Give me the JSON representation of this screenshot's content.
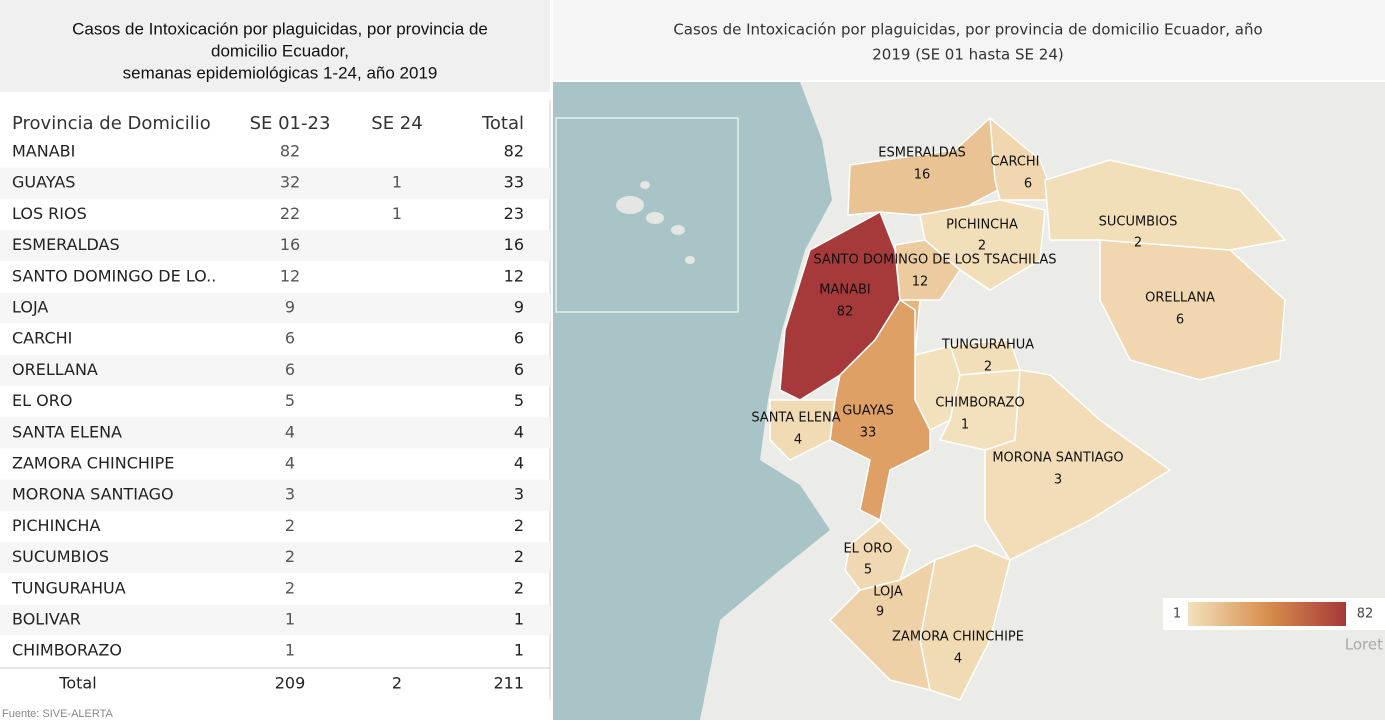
{
  "table": {
    "title": [
      "Casos de Intoxicación por plaguicidas, por provincia de",
      "domicilio Ecuador,",
      "semanas epidemiológicas 1-24, año 2019"
    ],
    "headers": [
      "Provincia de Domicilio",
      "SE 01-23",
      "SE 24",
      "Total"
    ],
    "rows": [
      [
        "MANABI",
        82,
        null,
        82
      ],
      [
        "GUAYAS",
        32,
        1,
        33
      ],
      [
        "LOS RIOS",
        22,
        1,
        23
      ],
      [
        "ESMERALDAS",
        16,
        null,
        16
      ],
      [
        "SANTO DOMINGO DE LO..",
        12,
        null,
        12
      ],
      [
        "LOJA",
        9,
        null,
        9
      ],
      [
        "CARCHI",
        6,
        null,
        6
      ],
      [
        "ORELLANA",
        6,
        null,
        6
      ],
      [
        "EL ORO",
        5,
        null,
        5
      ],
      [
        "SANTA ELENA",
        4,
        null,
        4
      ],
      [
        "ZAMORA CHINCHIPE",
        4,
        null,
        4
      ],
      [
        "MORONA SANTIAGO",
        3,
        null,
        3
      ],
      [
        "PICHINCHA",
        2,
        null,
        2
      ],
      [
        "SUCUMBIOS",
        2,
        null,
        2
      ],
      [
        "TUNGURAHUA",
        2,
        null,
        2
      ],
      [
        "BOLIVAR",
        1,
        null,
        1
      ],
      [
        "CHIMBORAZO",
        1,
        null,
        1
      ]
    ],
    "total": [
      "Total",
      209,
      2,
      211
    ],
    "source": "Fuente: SIVE-ALERTA"
  },
  "map": {
    "title": [
      "Casos de Intoxicación por plaguicidas, por provincia de domicilio Ecuador, año",
      "2019 (SE 01 hasta SE 24)"
    ],
    "regions": [
      {
        "name": "MANABI",
        "value": 82
      },
      {
        "name": "GUAYAS",
        "value": 33
      },
      {
        "name": "ESMERALDAS",
        "value": 16
      },
      {
        "name": "SANTO DOMINGO DE LOS TSACHILAS",
        "value": 12
      },
      {
        "name": "LOJA",
        "value": 9
      },
      {
        "name": "CARCHI",
        "value": 6
      },
      {
        "name": "ORELLANA",
        "value": 6
      },
      {
        "name": "EL ORO",
        "value": 5
      },
      {
        "name": "SANTA ELENA",
        "value": 4
      },
      {
        "name": "ZAMORA CHINCHIPE",
        "value": 4
      },
      {
        "name": "MORONA SANTIAGO",
        "value": 3
      },
      {
        "name": "PICHINCHA",
        "value": 2
      },
      {
        "name": "SUCUMBIOS",
        "value": 2
      },
      {
        "name": "TUNGURAHUA",
        "value": 2
      },
      {
        "name": "CHIMBORAZO",
        "value": 1
      }
    ],
    "legend": {
      "min": 1,
      "max": 82
    },
    "watermark": "Loret"
  }
}
